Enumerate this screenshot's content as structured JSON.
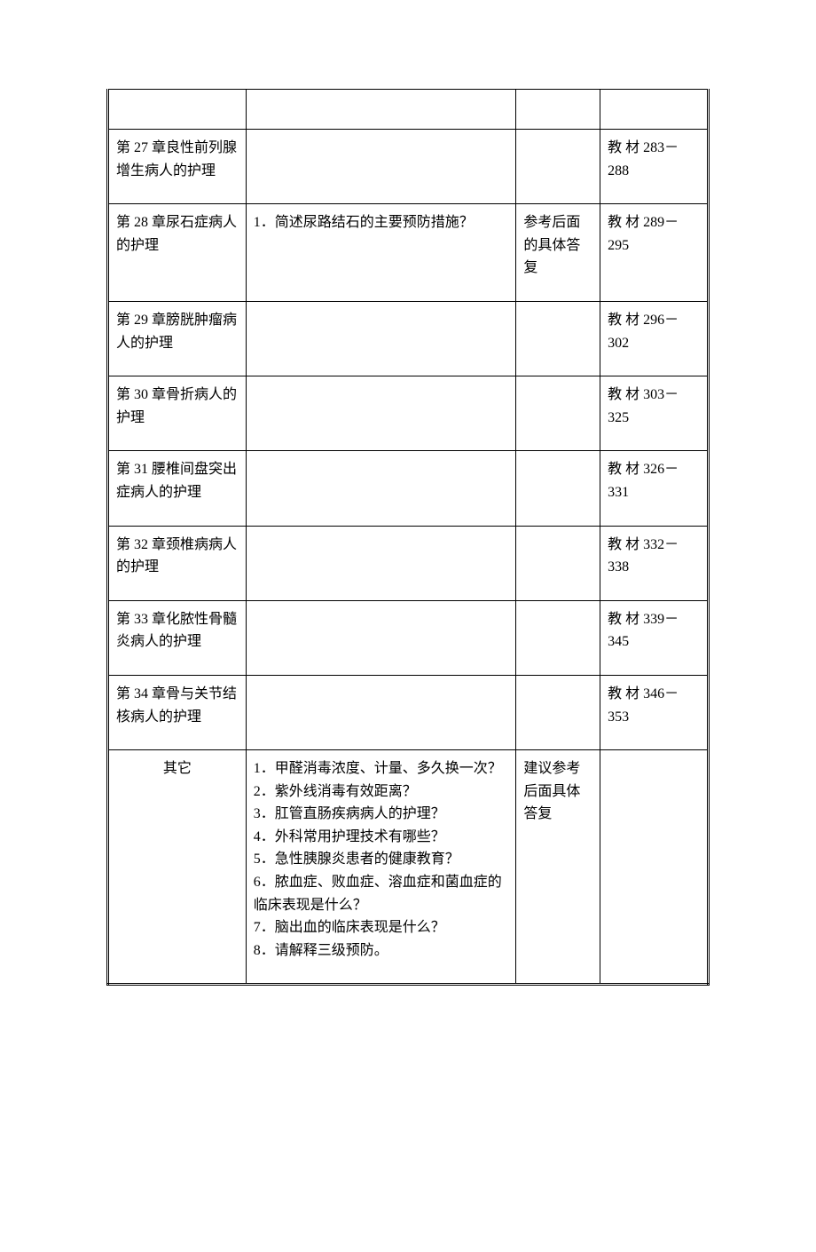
{
  "rows": [
    {
      "chapter": "",
      "question": "",
      "reply": "",
      "ref": ""
    },
    {
      "chapter": "第 27 章良性前列腺增生病人的护理",
      "question": "",
      "reply": "",
      "ref": "教 材 283－288"
    },
    {
      "chapter": "第 28 章尿石症病人的护理",
      "question": "1．简述尿路结石的主要预防措施？",
      "reply": "参考后面的具体答复",
      "ref": "教 材 289－295"
    },
    {
      "chapter": "第 29 章膀胱肿瘤病人的护理",
      "question": "",
      "reply": "",
      "ref": "教 材 296－302"
    },
    {
      "chapter": "第 30 章骨折病人的护理",
      "question": "",
      "reply": "",
      "ref": "教 材 303－325"
    },
    {
      "chapter": "第 31 腰椎间盘突出症病人的护理",
      "question": "",
      "reply": "",
      "ref": "教 材 326－331"
    },
    {
      "chapter": "第 32 章颈椎病病人的护理",
      "question": "",
      "reply": "",
      "ref": "教 材 332－338"
    },
    {
      "chapter": "第 33 章化脓性骨髓炎病人的护理",
      "question": "",
      "reply": "",
      "ref": "教 材 339－345"
    },
    {
      "chapter": "第 34 章骨与关节结核病人的护理",
      "question": "",
      "reply": "",
      "ref": "教 材 346－353"
    },
    {
      "chapter": "其它",
      "chapter_center": true,
      "question": "1．甲醛消毒浓度、计量、多久换一次？\n2．紫外线消毒有效距离？\n3．肛管直肠疾病病人的护理？\n4．外科常用护理技术有哪些？\n5．急性胰腺炎患者的健康教育？\n6．脓血症、败血症、溶血症和菌血症的临床表现是什么？\n7．脑出血的临床表现是什么？\n8．请解释三级预防。",
      "reply": "建议参考后面具体答复",
      "ref": ""
    }
  ]
}
